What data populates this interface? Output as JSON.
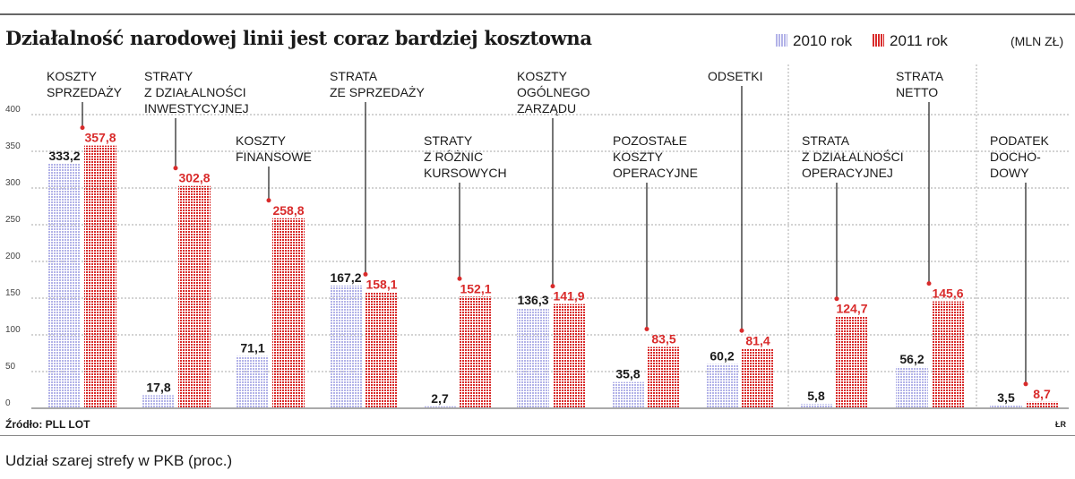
{
  "header": {
    "title": "Działalność narodowej linii jest coraz bardziej kosztowna",
    "unit": "(MLN ZŁ)"
  },
  "colors": {
    "series_2010": "#b3b3e8",
    "series_2011": "#d92b2b",
    "text": "#1a1a1a",
    "grid": "#8a8a8a"
  },
  "footer": {
    "source": "Źródło: PLL LOT",
    "credit": "ŁR",
    "next_chart_title": "Udział szarej strefy w PKB (proc.)"
  },
  "chart_data": {
    "type": "bar",
    "title": "Działalność narodowej linii jest coraz bardziej kosztowna",
    "ylabel": "",
    "xlabel": "",
    "ylim": [
      0,
      400
    ],
    "yticks": [
      0,
      50,
      100,
      150,
      200,
      250,
      300,
      350,
      400
    ],
    "legend_position": "top-right",
    "categories": [
      [
        "KOSZTY",
        "SPRZEDAŻY"
      ],
      [
        "STRATY",
        "Z DZIAŁALNOŚCI",
        "INWESTYCYJNEJ"
      ],
      [
        "KOSZTY",
        "FINANSOWE"
      ],
      [
        "STRATA",
        "ZE SPRZEDAŻY"
      ],
      [
        "STRATY",
        "Z RÓŻNIC",
        "KURSOWYCH"
      ],
      [
        "KOSZTY",
        "OGÓLNEGO",
        "ZARZĄDU"
      ],
      [
        "POZOSTAŁE",
        "KOSZTY",
        "OPERACYJNE"
      ],
      [
        "ODSETKI"
      ],
      [
        "STRATA",
        "Z DZIAŁALNOŚCI",
        "OPERACYJNEJ"
      ],
      [
        "STRATA",
        "NETTO"
      ],
      [
        "PODATEK",
        "DOCHO-",
        "DOWY"
      ]
    ],
    "series": [
      {
        "name": "2010 rok",
        "values": [
          333.2,
          17.8,
          71.1,
          167.2,
          2.7,
          136.3,
          35.8,
          60.2,
          5.8,
          56.2,
          3.5
        ],
        "labels": [
          "333,2",
          "17,8",
          "71,1",
          "167,2",
          "2,7",
          "136,3",
          "35,8",
          "60,2",
          "5,8",
          "56,2",
          "3,5"
        ]
      },
      {
        "name": "2011 rok",
        "values": [
          357.8,
          302.8,
          258.8,
          158.1,
          152.1,
          141.9,
          83.5,
          81.4,
          124.7,
          145.6,
          8.7
        ],
        "labels": [
          "357,8",
          "302,8",
          "258,8",
          "158,1",
          "152,1",
          "141,9",
          "83,5",
          "81,4",
          "124,7",
          "145,6",
          "8,7"
        ]
      }
    ]
  }
}
